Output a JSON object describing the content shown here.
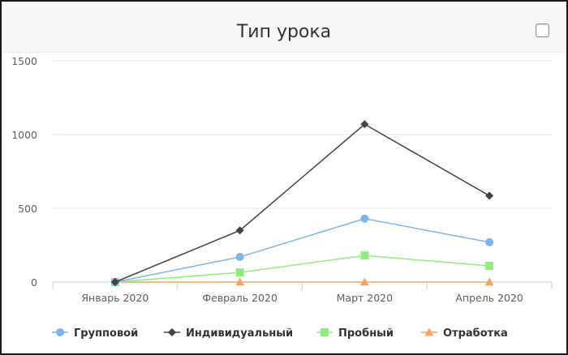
{
  "widget": {
    "title": "Тип урока",
    "checkbox_checked": false
  },
  "chart_data": {
    "type": "line",
    "title": "Тип урока",
    "categories": [
      "Январь 2020",
      "Февраль 2020",
      "Март 2020",
      "Апрель 2020"
    ],
    "ylim": [
      0,
      1500
    ],
    "yticks": [
      0,
      500,
      1000,
      1500
    ],
    "grid": true,
    "legend_position": "bottom",
    "series": [
      {
        "name": "Групповой",
        "values": [
          0,
          170,
          430,
          270
        ],
        "color": "#7cb5ec",
        "marker": "circle"
      },
      {
        "name": "Индивидуальный",
        "values": [
          0,
          350,
          1070,
          585
        ],
        "color": "#434348",
        "marker": "diamond"
      },
      {
        "name": "Пробный",
        "values": [
          0,
          65,
          180,
          110
        ],
        "color": "#90ed7d",
        "marker": "square"
      },
      {
        "name": "Отработка",
        "values": [
          0,
          0,
          0,
          0
        ],
        "color": "#f7a35c",
        "marker": "triangle"
      }
    ]
  }
}
